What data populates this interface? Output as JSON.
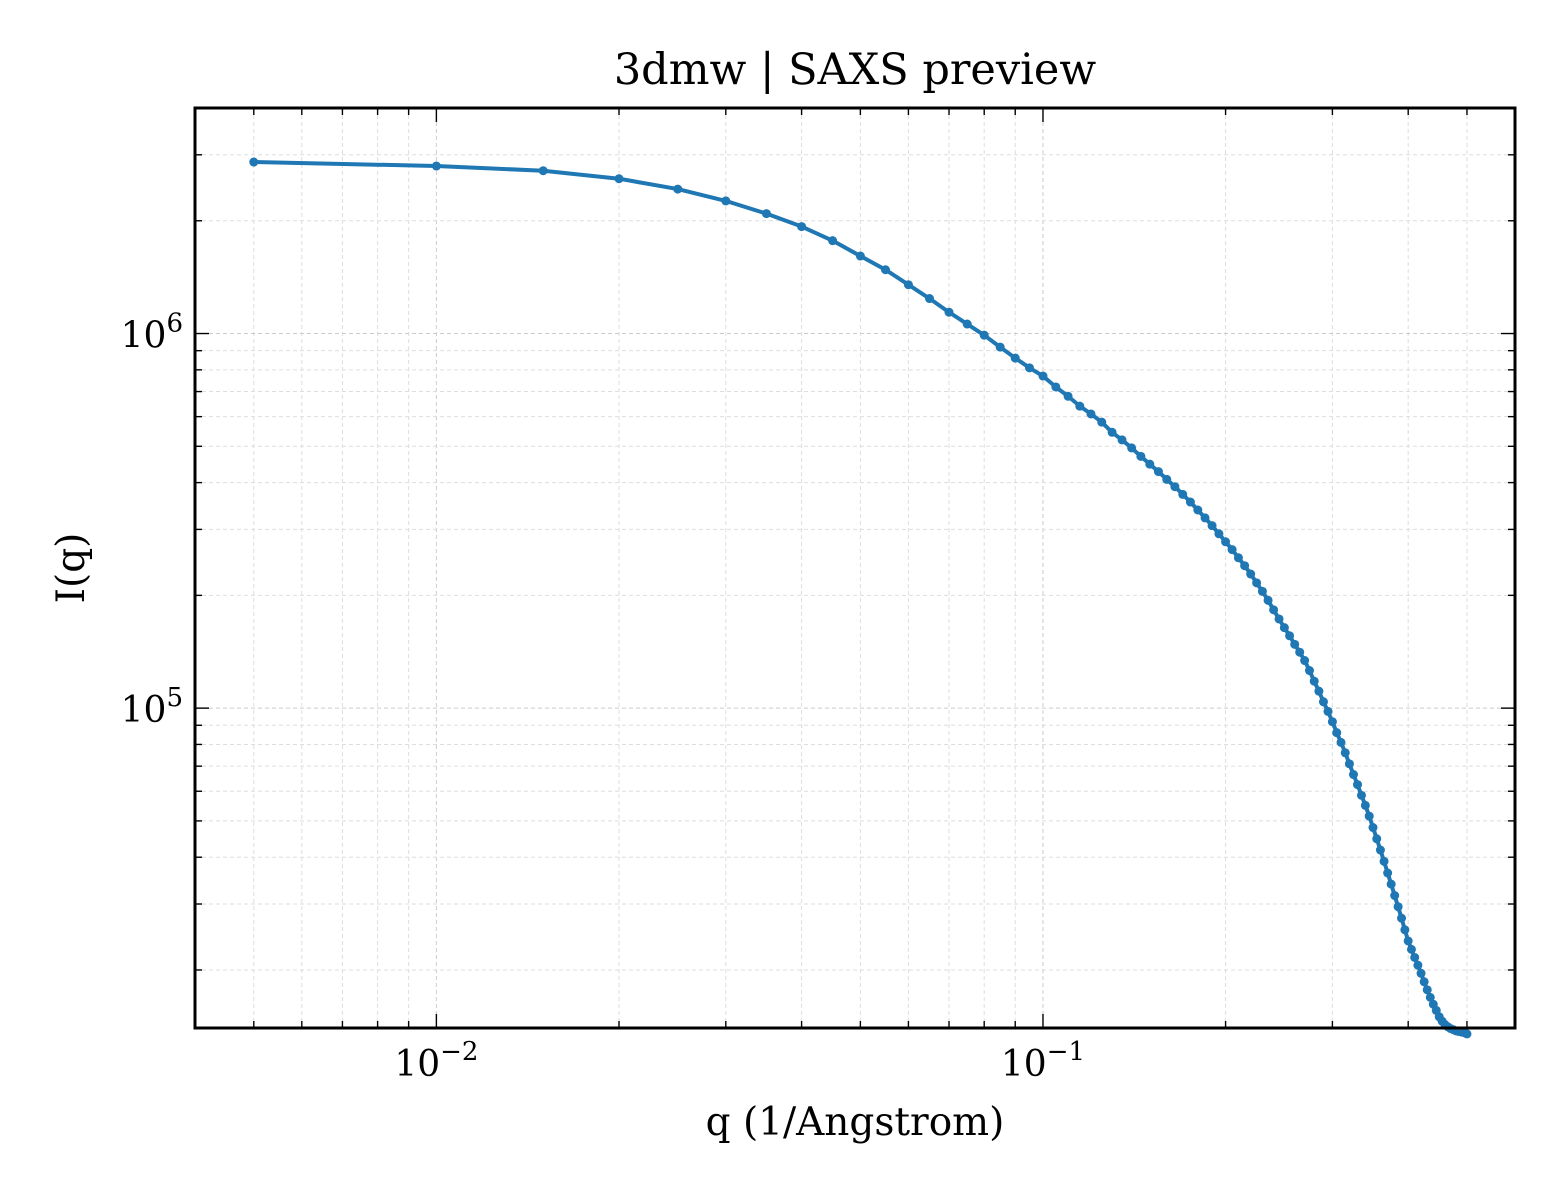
{
  "chart_data": {
    "type": "line",
    "title": "3dmw | SAXS preview",
    "xlabel": "q (1/Angstrom)",
    "ylabel": "I(q)",
    "xscale": "log",
    "yscale": "log",
    "xlim": [
      0.004,
      0.6
    ],
    "ylim": [
      14000,
      4000000
    ],
    "grid": true,
    "legend": "none",
    "x_ticks": [
      {
        "value": 0.01,
        "base": "10",
        "exp": "−2"
      },
      {
        "value": 0.1,
        "base": "10",
        "exp": "−1"
      }
    ],
    "y_ticks": [
      {
        "value": 100000,
        "base": "10",
        "exp": "5"
      },
      {
        "value": 1000000,
        "base": "10",
        "exp": "6"
      }
    ],
    "colors": {
      "series": "#1f77b4",
      "grid": "#cccccc",
      "frame": "#000000"
    },
    "series": [
      {
        "marker": "circle",
        "x": [
          0.005,
          0.01,
          0.015,
          0.02,
          0.025,
          0.03,
          0.035,
          0.04,
          0.045,
          0.05,
          0.055,
          0.06,
          0.065,
          0.07,
          0.075,
          0.08,
          0.085,
          0.09,
          0.095,
          0.1,
          0.105,
          0.11,
          0.115,
          0.12,
          0.125,
          0.13,
          0.135,
          0.14,
          0.145,
          0.15,
          0.155,
          0.16,
          0.165,
          0.17,
          0.175,
          0.18,
          0.185,
          0.19,
          0.195,
          0.2,
          0.205,
          0.21,
          0.215,
          0.22,
          0.225,
          0.23,
          0.235,
          0.24,
          0.245,
          0.25,
          0.255,
          0.26,
          0.265,
          0.27,
          0.275,
          0.28,
          0.285,
          0.29,
          0.295,
          0.3,
          0.305,
          0.31,
          0.315,
          0.32,
          0.325,
          0.33,
          0.335,
          0.34,
          0.345,
          0.35,
          0.355,
          0.36,
          0.365,
          0.37,
          0.375,
          0.38,
          0.385,
          0.39,
          0.395,
          0.4,
          0.405,
          0.41,
          0.415,
          0.42,
          0.425,
          0.43,
          0.435,
          0.44,
          0.445,
          0.45,
          0.455,
          0.46,
          0.465,
          0.47,
          0.475,
          0.48,
          0.485,
          0.49,
          0.495,
          0.5
        ],
        "y": [
          2870000,
          2800000,
          2720000,
          2590000,
          2430000,
          2260000,
          2090000,
          1930000,
          1770000,
          1610000,
          1480000,
          1350000,
          1240000,
          1140000,
          1060000,
          990000,
          920000,
          860000,
          810000,
          770000,
          720000,
          680000,
          640000,
          610000,
          580000,
          545000,
          520000,
          495000,
          470000,
          448000,
          428000,
          408000,
          390000,
          372000,
          355000,
          338000,
          322000,
          307000,
          292000,
          278000,
          265000,
          252000,
          240000,
          228000,
          216000,
          205000,
          194000,
          183000,
          173000,
          164000,
          156000,
          148000,
          141000,
          134000,
          126000,
          118000,
          111000,
          104000,
          98000,
          92000,
          86000,
          81000,
          76000,
          71000,
          66500,
          62500,
          58500,
          55000,
          51500,
          48000,
          44800,
          41800,
          39000,
          36300,
          33900,
          31600,
          29500,
          27500,
          25600,
          23900,
          22700,
          21600,
          20600,
          19600,
          18600,
          17700,
          16900,
          16200,
          15600,
          15000,
          14600,
          14300,
          14100,
          13950,
          13850,
          13750,
          13700,
          13650,
          13600,
          13500
        ]
      }
    ]
  }
}
